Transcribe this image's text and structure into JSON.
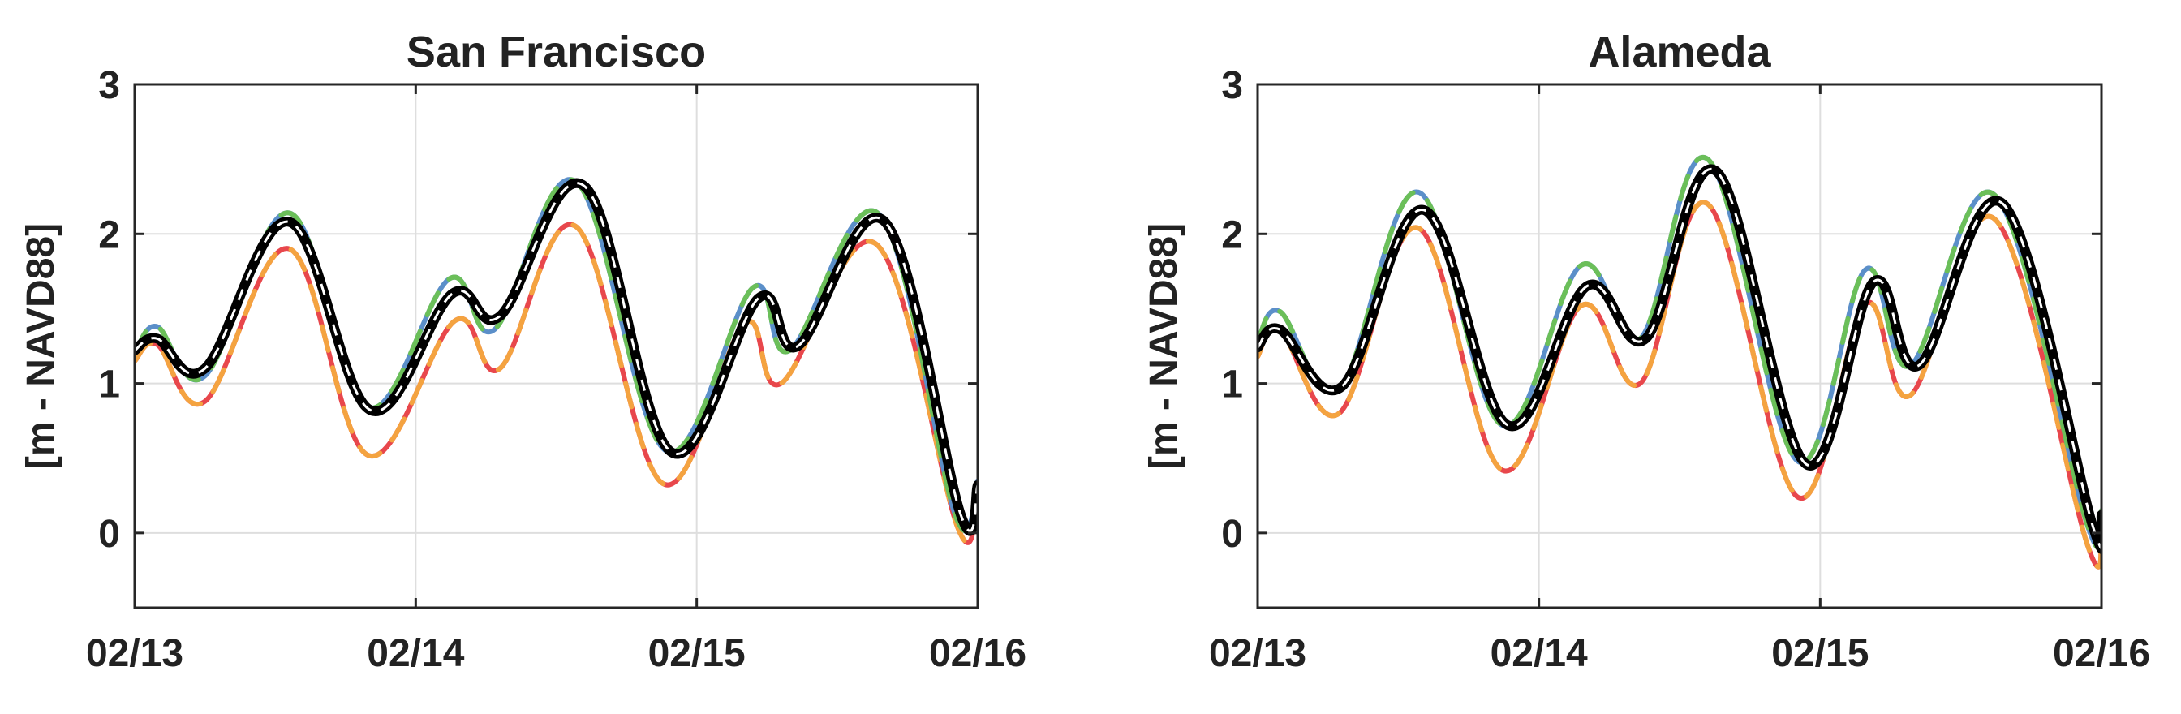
{
  "chart_data": [
    {
      "type": "line",
      "title": "San Francisco",
      "xlabel": "",
      "ylabel": "[m - NAVD88]",
      "xlim": [
        0,
        3
      ],
      "ylim": [
        -0.5,
        3
      ],
      "grid": true,
      "xticks": [
        0,
        1,
        2,
        3
      ],
      "xtick_labels": [
        "02/13",
        "02/14",
        "02/15",
        "02/16"
      ],
      "yticks": [
        0,
        1,
        2,
        3
      ],
      "ytick_labels": [
        "0",
        "1",
        "2",
        "3"
      ],
      "series": [
        {
          "color": "#e8474c",
          "style": "solid",
          "x": [
            0,
            0.08,
            0.25,
            0.55,
            0.83,
            1.14,
            1.3,
            1.57,
            1.88,
            2.17,
            2.3,
            2.64,
            2.93,
            3.0
          ],
          "y": [
            1.15,
            1.26,
            0.88,
            1.9,
            0.52,
            1.42,
            1.1,
            2.05,
            0.33,
            1.4,
            1.0,
            1.93,
            0.03,
            0.27
          ]
        },
        {
          "color": "#f4a340",
          "style": "dashed",
          "x": [
            0,
            0.08,
            0.25,
            0.55,
            0.83,
            1.14,
            1.3,
            1.57,
            1.88,
            2.17,
            2.3,
            2.64,
            2.93,
            3.0
          ],
          "y": [
            1.15,
            1.26,
            0.88,
            1.9,
            0.52,
            1.42,
            1.1,
            2.05,
            0.33,
            1.4,
            1.0,
            1.93,
            0.03,
            0.27
          ]
        },
        {
          "color": "#5b8fc9",
          "style": "solid",
          "x": [
            0,
            0.08,
            0.25,
            0.55,
            0.83,
            1.12,
            1.28,
            1.57,
            1.89,
            2.2,
            2.33,
            2.65,
            2.92,
            3.0
          ],
          "y": [
            1.2,
            1.38,
            1.05,
            2.14,
            0.84,
            1.7,
            1.36,
            2.35,
            0.55,
            1.64,
            1.22,
            2.13,
            0.12,
            0.35
          ]
        },
        {
          "color": "#6bbf59",
          "style": "dashed",
          "x": [
            0,
            0.08,
            0.25,
            0.55,
            0.83,
            1.12,
            1.28,
            1.57,
            1.89,
            2.2,
            2.33,
            2.65,
            2.92,
            3.0
          ],
          "y": [
            1.2,
            1.38,
            1.05,
            2.14,
            0.84,
            1.7,
            1.36,
            2.35,
            0.55,
            1.64,
            1.22,
            2.13,
            0.12,
            0.35
          ]
        },
        {
          "color": "#000000",
          "style": "solid",
          "x": [
            0,
            0.08,
            0.25,
            0.55,
            0.84,
            1.13,
            1.3,
            1.6,
            1.91,
            2.22,
            2.36,
            2.67,
            2.94,
            3.0
          ],
          "y": [
            1.22,
            1.3,
            1.1,
            2.08,
            0.82,
            1.6,
            1.45,
            2.32,
            0.54,
            1.57,
            1.25,
            2.08,
            0.12,
            0.32
          ]
        }
      ]
    },
    {
      "type": "line",
      "title": "Alameda",
      "xlabel": "",
      "ylabel": "[m - NAVD88]",
      "xlim": [
        0,
        3
      ],
      "ylim": [
        -0.5,
        3
      ],
      "grid": true,
      "xticks": [
        0,
        1,
        2,
        3
      ],
      "xtick_labels": [
        "02/13",
        "02/14",
        "02/15",
        "02/16"
      ],
      "yticks": [
        0,
        1,
        2,
        3
      ],
      "ytick_labels": [
        "0",
        "1",
        "2",
        "3"
      ],
      "series": [
        {
          "color": "#e8474c",
          "style": "solid",
          "x": [
            0,
            0.08,
            0.29,
            0.57,
            0.87,
            1.15,
            1.36,
            1.6,
            1.92,
            2.16,
            2.32,
            2.62,
            2.95,
            3.0
          ],
          "y": [
            1.18,
            1.36,
            0.8,
            2.04,
            0.42,
            1.52,
            1.0,
            2.2,
            0.24,
            1.53,
            0.92,
            2.1,
            -0.08,
            0.02
          ]
        },
        {
          "color": "#f4a340",
          "style": "dashed",
          "x": [
            0,
            0.08,
            0.29,
            0.57,
            0.87,
            1.15,
            1.36,
            1.6,
            1.92,
            2.16,
            2.32,
            2.62,
            2.95,
            3.0
          ],
          "y": [
            1.18,
            1.36,
            0.8,
            2.04,
            0.42,
            1.52,
            1.0,
            2.2,
            0.24,
            1.53,
            0.92,
            2.1,
            -0.08,
            0.02
          ]
        },
        {
          "color": "#5b8fc9",
          "style": "solid",
          "x": [
            0,
            0.08,
            0.29,
            0.57,
            0.87,
            1.15,
            1.36,
            1.6,
            1.92,
            2.16,
            2.32,
            2.62,
            2.95,
            3.0
          ],
          "y": [
            1.28,
            1.48,
            0.96,
            2.28,
            0.72,
            1.79,
            1.3,
            2.5,
            0.48,
            1.76,
            1.12,
            2.26,
            0.05,
            0.15
          ]
        },
        {
          "color": "#6bbf59",
          "style": "dashed",
          "x": [
            0,
            0.08,
            0.29,
            0.57,
            0.87,
            1.15,
            1.36,
            1.6,
            1.92,
            2.16,
            2.32,
            2.62,
            2.95,
            3.0
          ],
          "y": [
            1.28,
            1.48,
            0.96,
            2.28,
            0.72,
            1.79,
            1.3,
            2.5,
            0.48,
            1.76,
            1.12,
            2.26,
            0.05,
            0.15
          ]
        },
        {
          "color": "#000000",
          "style": "solid",
          "x": [
            0,
            0.08,
            0.3,
            0.59,
            0.89,
            1.17,
            1.38,
            1.63,
            1.95,
            2.19,
            2.35,
            2.65,
            2.97,
            3.0
          ],
          "y": [
            1.24,
            1.36,
            0.98,
            2.16,
            0.72,
            1.65,
            1.3,
            2.42,
            0.46,
            1.68,
            1.12,
            2.2,
            0.04,
            0.12
          ]
        }
      ]
    }
  ]
}
